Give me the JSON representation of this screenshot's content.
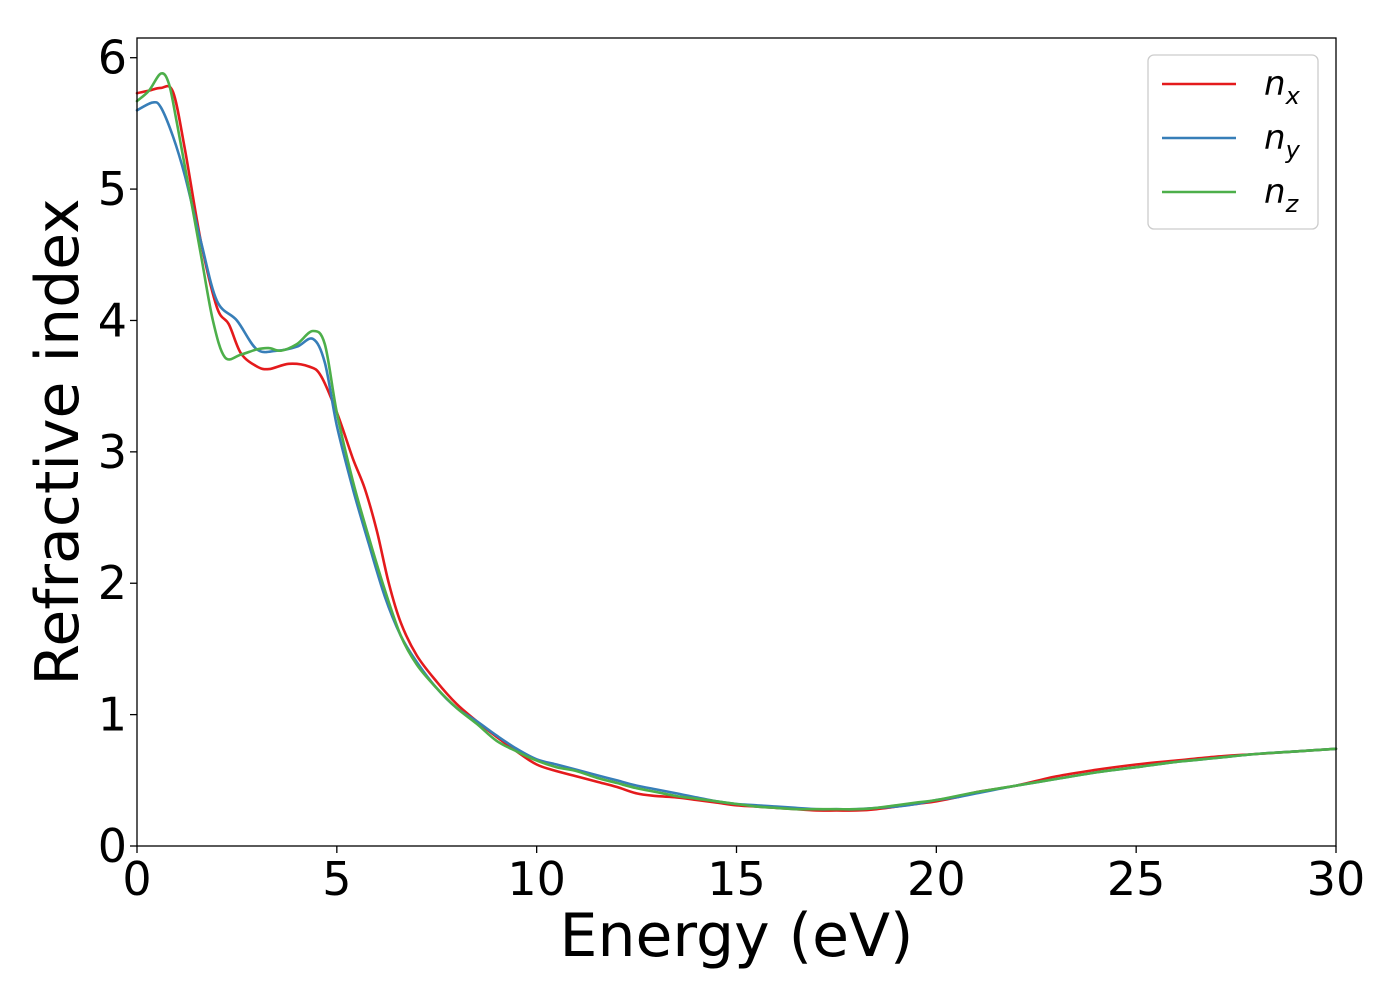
{
  "chart_data": {
    "type": "line",
    "xlabel": "Energy (eV)",
    "ylabel": "Refractive index",
    "xlim": [
      0,
      30
    ],
    "ylim": [
      0,
      6.15
    ],
    "xticks": [
      "0",
      "5",
      "10",
      "15",
      "20",
      "25",
      "30"
    ],
    "yticks": [
      "0",
      "1",
      "2",
      "3",
      "4",
      "5",
      "6"
    ],
    "grid": false,
    "legend_position": "top-right",
    "series": [
      {
        "name_base": "n",
        "name_sub": "x",
        "color": "#e41a1c",
        "x": [
          0,
          0.3,
          0.6,
          0.9,
          1.2,
          1.6,
          2.0,
          2.3,
          2.6,
          3.0,
          3.3,
          3.8,
          4.3,
          4.6,
          5.0,
          5.4,
          5.7,
          6.0,
          6.3,
          6.6,
          7.0,
          7.5,
          8.0,
          8.5,
          9.0,
          9.5,
          10.0,
          10.5,
          11.0,
          11.5,
          12.0,
          12.5,
          13.0,
          13.5,
          14.0,
          14.5,
          15.0,
          15.5,
          16.0,
          16.5,
          17.0,
          17.5,
          18.0,
          18.5,
          19.0,
          19.5,
          20.0,
          20.5,
          21.0,
          22.0,
          23.0,
          24.0,
          25.0,
          26.0,
          27.0,
          28.0,
          29.0,
          30.0
        ],
        "y": [
          5.73,
          5.75,
          5.77,
          5.74,
          5.3,
          4.6,
          4.1,
          3.97,
          3.75,
          3.65,
          3.63,
          3.67,
          3.65,
          3.58,
          3.3,
          2.95,
          2.72,
          2.4,
          2.0,
          1.7,
          1.45,
          1.25,
          1.08,
          0.95,
          0.83,
          0.72,
          0.62,
          0.57,
          0.53,
          0.49,
          0.45,
          0.4,
          0.38,
          0.37,
          0.35,
          0.33,
          0.31,
          0.3,
          0.29,
          0.28,
          0.27,
          0.27,
          0.27,
          0.28,
          0.3,
          0.32,
          0.34,
          0.37,
          0.41,
          0.46,
          0.53,
          0.58,
          0.62,
          0.65,
          0.68,
          0.7,
          0.72,
          0.74
        ]
      },
      {
        "name_base": "n",
        "name_sub": "y",
        "color": "#377eb8",
        "x": [
          0,
          0.4,
          0.6,
          0.9,
          1.2,
          1.6,
          2.0,
          2.5,
          3.0,
          3.5,
          4.0,
          4.4,
          4.7,
          5.0,
          5.4,
          5.8,
          6.2,
          6.6,
          7.0,
          7.5,
          8.0,
          8.5,
          9.0,
          9.5,
          10.0,
          10.5,
          11.0,
          11.5,
          12.0,
          12.5,
          13.0,
          13.5,
          14.0,
          14.5,
          15.0,
          15.5,
          16.0,
          16.5,
          17.0,
          17.5,
          18.0,
          18.5,
          19.0,
          19.5,
          20.0,
          20.5,
          21.0,
          22.0,
          23.0,
          24.0,
          25.0,
          26.0,
          27.0,
          28.0,
          29.0,
          30.0
        ],
        "y": [
          5.6,
          5.66,
          5.62,
          5.4,
          5.1,
          4.6,
          4.15,
          4.0,
          3.78,
          3.77,
          3.8,
          3.86,
          3.68,
          3.2,
          2.72,
          2.3,
          1.9,
          1.6,
          1.4,
          1.2,
          1.05,
          0.95,
          0.84,
          0.74,
          0.66,
          0.62,
          0.58,
          0.54,
          0.5,
          0.46,
          0.43,
          0.4,
          0.37,
          0.34,
          0.32,
          0.31,
          0.3,
          0.29,
          0.28,
          0.28,
          0.28,
          0.29,
          0.3,
          0.32,
          0.35,
          0.37,
          0.4,
          0.46,
          0.51,
          0.56,
          0.6,
          0.64,
          0.67,
          0.7,
          0.72,
          0.74
        ]
      },
      {
        "name_base": "n",
        "name_sub": "z",
        "color": "#4daf4a",
        "x": [
          0,
          0.3,
          0.6,
          0.8,
          1.0,
          1.3,
          1.6,
          1.9,
          2.2,
          2.6,
          3.0,
          3.3,
          3.6,
          4.0,
          4.4,
          4.7,
          5.0,
          5.4,
          5.8,
          6.2,
          6.6,
          7.0,
          7.5,
          8.0,
          8.5,
          9.0,
          9.5,
          10.0,
          10.5,
          11.0,
          11.5,
          12.0,
          12.5,
          13.0,
          13.5,
          14.0,
          14.5,
          15.0,
          15.5,
          16.0,
          16.5,
          17.0,
          17.5,
          18.0,
          18.5,
          19.0,
          19.5,
          20.0,
          20.5,
          21.0,
          22.0,
          23.0,
          24.0,
          25.0,
          26.0,
          27.0,
          28.0,
          29.0,
          30.0
        ],
        "y": [
          5.67,
          5.75,
          5.88,
          5.8,
          5.5,
          5.0,
          4.5,
          4.0,
          3.72,
          3.74,
          3.78,
          3.79,
          3.77,
          3.82,
          3.92,
          3.82,
          3.3,
          2.78,
          2.35,
          1.95,
          1.6,
          1.38,
          1.2,
          1.05,
          0.93,
          0.8,
          0.72,
          0.65,
          0.6,
          0.57,
          0.52,
          0.48,
          0.44,
          0.41,
          0.38,
          0.36,
          0.34,
          0.32,
          0.3,
          0.29,
          0.28,
          0.28,
          0.28,
          0.28,
          0.29,
          0.31,
          0.33,
          0.35,
          0.38,
          0.41,
          0.46,
          0.51,
          0.56,
          0.6,
          0.64,
          0.67,
          0.7,
          0.72,
          0.74
        ]
      }
    ]
  }
}
